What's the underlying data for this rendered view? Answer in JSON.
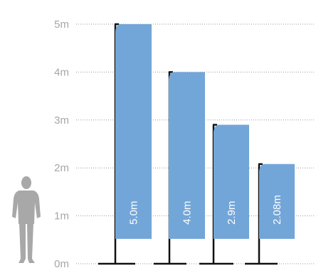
{
  "chart_data": {
    "type": "bar",
    "unit": "m",
    "ylim": [
      0,
      5
    ],
    "y_ticks": [
      {
        "value": 0,
        "label": "0m"
      },
      {
        "value": 1,
        "label": "1m"
      },
      {
        "value": 2,
        "label": "2m"
      },
      {
        "value": 3,
        "label": "3m"
      },
      {
        "value": 4,
        "label": "4m"
      },
      {
        "value": 5,
        "label": "5m"
      }
    ],
    "grid": true,
    "series": [
      {
        "values": [
          5.0,
          4.0,
          2.9,
          2.08
        ],
        "labels": [
          "5.0m",
          "4.0m",
          "2.9m",
          "2.08m"
        ]
      }
    ],
    "colors": {
      "flag": "#73a6d8",
      "pole": "#111111",
      "gridline": "#9a9a9a",
      "tick_label": "#a6a6a6",
      "figure": "#a8a8a8"
    }
  }
}
